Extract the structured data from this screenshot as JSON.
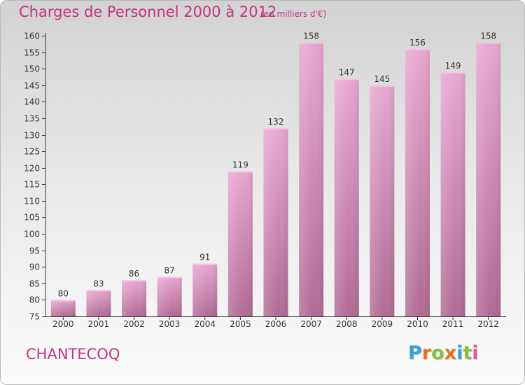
{
  "chart_data": {
    "type": "bar",
    "title": "Charges de Personnel 2000 à 2012",
    "subtitle": "(en milliers d'€)",
    "categories": [
      "2000",
      "2001",
      "2002",
      "2003",
      "2004",
      "2005",
      "2006",
      "2007",
      "2008",
      "2009",
      "2010",
      "2011",
      "2012"
    ],
    "values": [
      80,
      83,
      86,
      87,
      91,
      119,
      132,
      158,
      147,
      145,
      156,
      149,
      158
    ],
    "ylim": [
      75,
      160
    ],
    "yticks": [
      75,
      80,
      85,
      90,
      95,
      100,
      105,
      110,
      115,
      120,
      125,
      130,
      135,
      140,
      145,
      150,
      155,
      160
    ],
    "xlabel": "",
    "ylabel": "",
    "grid": false,
    "bar_color": "#c97ba8"
  },
  "footer": {
    "commune": "CHANTECOQ",
    "logo_letters": [
      "P",
      "r",
      "o",
      "x",
      "i",
      "t",
      "i"
    ],
    "logo_colors": [
      "#3aa0d8",
      "#e2731a",
      "#88c037",
      "#e2731a",
      "#3aa0d8",
      "#88c037",
      "#e05b9c"
    ]
  }
}
